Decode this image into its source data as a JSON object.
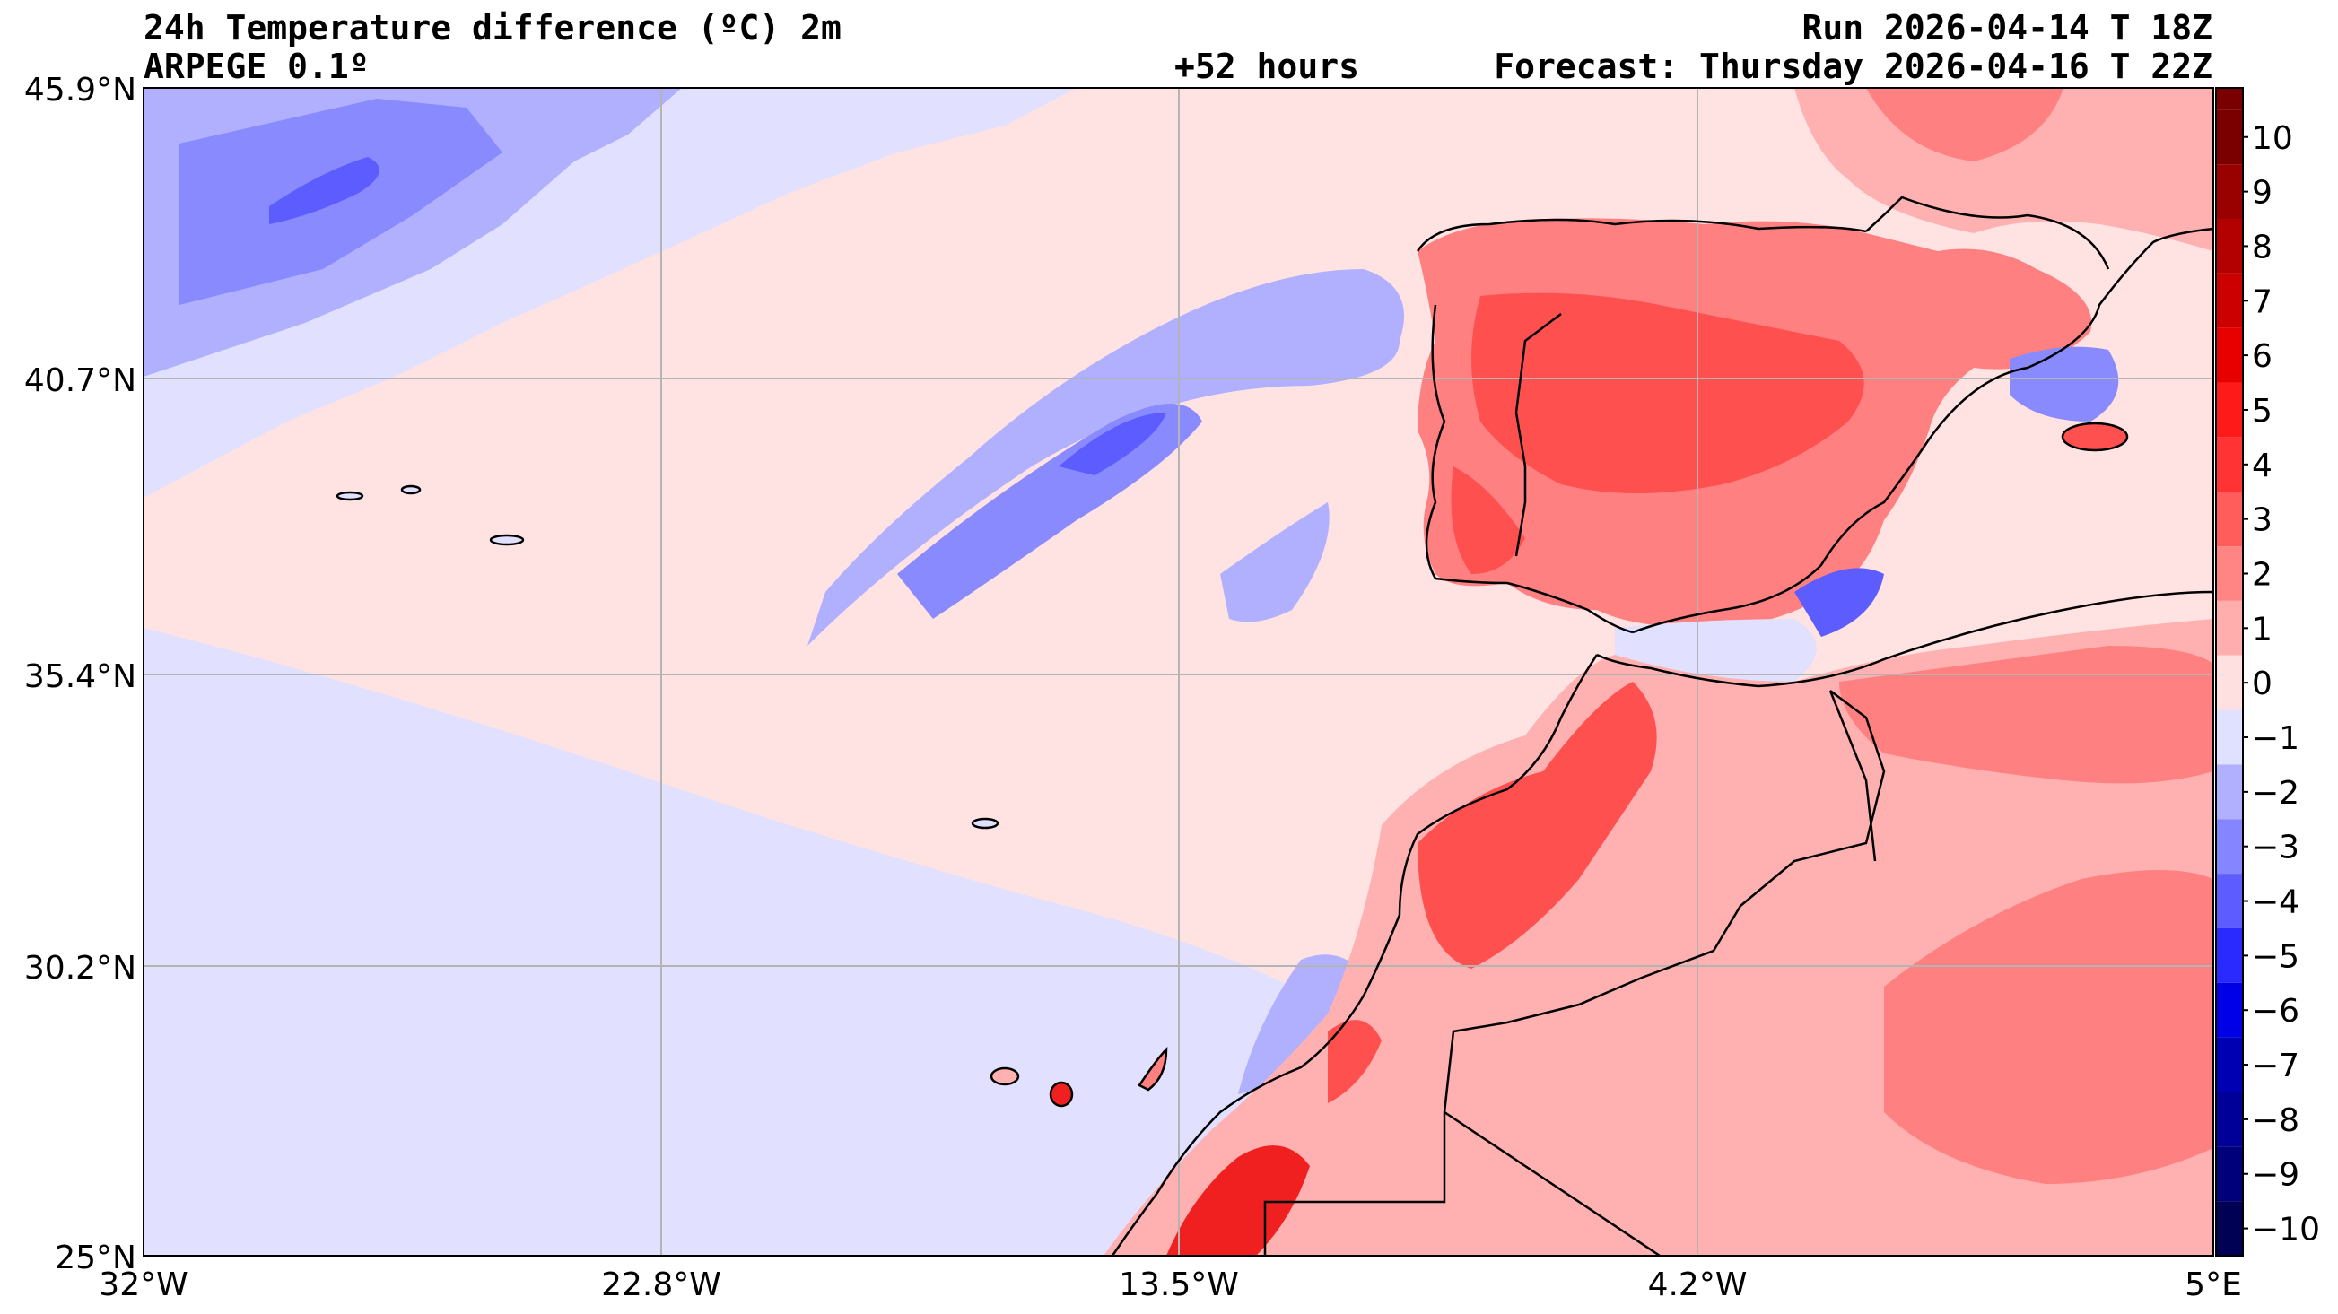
{
  "header": {
    "title": "24h Temperature difference (ºC) 2m",
    "model": "ARPEGE 0.1º",
    "lead_time": "+52 hours",
    "run": "Run 2026-04-14 T 18Z",
    "forecast": "Forecast: Thursday 2026-04-16 T 22Z"
  },
  "axes": {
    "lat_ticks": [
      "45.9°N",
      "40.7°N",
      "35.4°N",
      "30.2°N",
      "25°N"
    ],
    "lon_ticks": [
      "32°W",
      "22.8°W",
      "13.5°W",
      "4.2°W",
      "5°E"
    ]
  },
  "colorbar": {
    "labels": [
      "10",
      "9",
      "8",
      "7",
      "6",
      "5",
      "4",
      "3",
      "2",
      "1",
      "0",
      "−1",
      "−2",
      "−3",
      "−4",
      "−5",
      "−6",
      "−7",
      "−8",
      "−9",
      "−10"
    ],
    "colors": [
      "#7a0000",
      "#990000",
      "#b30000",
      "#cc0000",
      "#e60000",
      "#ff1a1a",
      "#ff3333",
      "#ff5c5c",
      "#ff8585",
      "#ffadad",
      "#ffe0e0",
      "#e0e0ff",
      "#b0b0ff",
      "#8585ff",
      "#5c5cff",
      "#2a2aff",
      "#0000e6",
      "#0000b3",
      "#000099",
      "#00007a",
      "#000055"
    ]
  },
  "map": {
    "colors": {
      "sea_base": "#ffe2e2",
      "cool_1": "#e1e1ff",
      "cool_2": "#b0b0ff",
      "cool_3": "#8a8aff",
      "cool_4": "#5c5cff",
      "warm_1": "#ffe0e0",
      "warm_2": "#ffb0b0",
      "warm_3": "#ff8080",
      "warm_4": "#ff5050",
      "warm_5": "#f02020",
      "coast": "#000000",
      "grid": "#b4b4b4"
    }
  }
}
